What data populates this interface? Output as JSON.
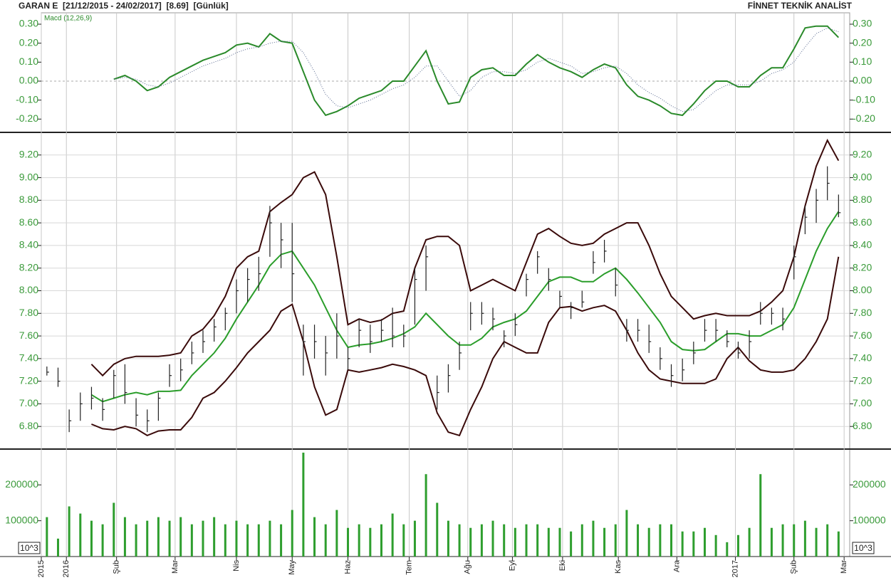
{
  "header": {
    "symbol_info": "GARAN E  [21/12/2015 - 24/02/2017]  [8.69]  [Günlük]",
    "brand": "FİNNET TEKNİK ANALİST"
  },
  "chart_data": [
    {
      "type": "line",
      "ylim": [
        -0.27,
        0.36
      ],
      "yticks": [
        {
          "value": 0.3,
          "label": "0.30"
        },
        {
          "value": 0.2,
          "label": "0.20"
        },
        {
          "value": 0.1,
          "label": "0.10"
        },
        {
          "value": 0,
          "label": "0.00"
        },
        {
          "value": -0.1,
          "label": "-0.10"
        },
        {
          "value": -0.2,
          "label": "-0.20"
        }
      ],
      "grid": false,
      "series": [
        {
          "name": "Macd (12,26,9)",
          "color": "#2a8a2a",
          "style": "solid",
          "values": [
            null,
            null,
            null,
            null,
            null,
            null,
            0.01,
            0.03,
            0.0,
            -0.05,
            -0.03,
            0.02,
            0.05,
            0.08,
            0.11,
            0.13,
            0.15,
            0.19,
            0.2,
            0.18,
            0.25,
            0.21,
            0.2,
            0.05,
            -0.1,
            -0.18,
            -0.16,
            -0.13,
            -0.09,
            -0.07,
            -0.05,
            0.0,
            0.0,
            0.08,
            0.16,
            0.0,
            -0.12,
            -0.11,
            0.02,
            0.06,
            0.07,
            0.03,
            0.03,
            0.09,
            0.14,
            0.1,
            0.07,
            0.05,
            0.02,
            0.06,
            0.09,
            0.07,
            -0.02,
            -0.08,
            -0.1,
            -0.13,
            -0.17,
            -0.18,
            -0.12,
            -0.05,
            0.0,
            0.0,
            -0.03,
            -0.03,
            0.03,
            0.07,
            0.07,
            0.17,
            0.28,
            0.29,
            0.29,
            0.23
          ]
        },
        {
          "color": "#5a6a90",
          "style": "dotted",
          "values": [
            null,
            null,
            null,
            null,
            null,
            null,
            0.01,
            0.02,
            0.01,
            -0.02,
            -0.03,
            -0.01,
            0.02,
            0.05,
            0.08,
            0.1,
            0.12,
            0.15,
            0.17,
            0.18,
            0.2,
            0.21,
            0.21,
            0.15,
            0.05,
            -0.07,
            -0.13,
            -0.14,
            -0.12,
            -0.1,
            -0.07,
            -0.04,
            -0.02,
            0.02,
            0.08,
            0.08,
            0.0,
            -0.08,
            -0.05,
            0.02,
            0.05,
            0.05,
            0.04,
            0.06,
            0.1,
            0.12,
            0.1,
            0.08,
            0.04,
            0.05,
            0.07,
            0.08,
            0.04,
            -0.02,
            -0.06,
            -0.09,
            -0.13,
            -0.16,
            -0.15,
            -0.1,
            -0.05,
            -0.02,
            -0.02,
            -0.02,
            0.0,
            0.04,
            0.06,
            0.1,
            0.18,
            0.25,
            0.28,
            0.26
          ]
        }
      ]
    },
    {
      "type": "ohlc",
      "ylim": [
        6.6,
        9.4
      ],
      "color": "#222222",
      "yticks": [
        {
          "value": 9.2,
          "label": "9.20"
        },
        {
          "value": 9,
          "label": "9.00"
        },
        {
          "value": 8.8,
          "label": "8.80"
        },
        {
          "value": 8.6,
          "label": "8.60"
        },
        {
          "value": 8.4,
          "label": "8.40"
        },
        {
          "value": 8.2,
          "label": "8.20"
        },
        {
          "value": 8,
          "label": "8.00"
        },
        {
          "value": 7.8,
          "label": "7.80"
        },
        {
          "value": 7.6,
          "label": "7.60"
        },
        {
          "value": 7.4,
          "label": "7.40"
        },
        {
          "value": 7.2,
          "label": "7.20"
        },
        {
          "value": 7,
          "label": "7.00"
        },
        {
          "value": 6.8,
          "label": "6.80"
        }
      ],
      "grid": true,
      "high": [
        7.33,
        7.32,
        6.95,
        7.1,
        7.15,
        7.05,
        7.3,
        7.35,
        7.05,
        6.95,
        7.1,
        7.35,
        7.4,
        7.55,
        7.65,
        7.75,
        7.85,
        8.1,
        8.2,
        8.3,
        8.75,
        8.6,
        8.6,
        7.7,
        7.7,
        7.6,
        7.8,
        7.5,
        7.75,
        7.7,
        7.75,
        7.85,
        7.7,
        8.2,
        8.4,
        7.25,
        7.35,
        7.55,
        7.9,
        7.9,
        7.85,
        7.65,
        7.8,
        8.15,
        8.35,
        8.2,
        8.0,
        7.9,
        8.0,
        8.35,
        8.45,
        8.2,
        7.75,
        7.75,
        7.7,
        7.5,
        7.35,
        7.4,
        7.55,
        7.75,
        7.75,
        7.65,
        7.55,
        7.65,
        7.9,
        7.85,
        7.85,
        8.4,
        8.75,
        8.9,
        9.1,
        8.85
      ],
      "low": [
        7.25,
        7.15,
        6.75,
        6.85,
        6.95,
        6.85,
        7.05,
        7.0,
        6.8,
        6.75,
        6.85,
        7.15,
        7.2,
        7.35,
        7.45,
        7.55,
        7.65,
        7.8,
        7.9,
        8.0,
        8.3,
        8.2,
        7.9,
        7.25,
        7.4,
        7.25,
        7.4,
        7.3,
        7.5,
        7.45,
        7.55,
        7.5,
        7.5,
        7.7,
        8.0,
        6.95,
        7.1,
        7.3,
        7.65,
        7.7,
        7.65,
        7.5,
        7.6,
        7.95,
        8.15,
        8.0,
        7.85,
        7.75,
        7.85,
        8.15,
        8.25,
        7.95,
        7.55,
        7.55,
        7.45,
        7.3,
        7.15,
        7.2,
        7.35,
        7.55,
        7.55,
        7.5,
        7.4,
        7.4,
        7.7,
        7.7,
        7.65,
        8.1,
        8.5,
        8.6,
        8.8,
        8.65
      ],
      "close": [
        7.28,
        7.2,
        6.85,
        7.0,
        7.05,
        6.95,
        7.25,
        7.1,
        6.9,
        6.85,
        7.05,
        7.25,
        7.3,
        7.45,
        7.55,
        7.68,
        7.8,
        8.0,
        8.1,
        8.15,
        8.6,
        8.45,
        8.15,
        7.55,
        7.55,
        7.45,
        7.6,
        7.4,
        7.65,
        7.55,
        7.65,
        7.6,
        7.6,
        8.1,
        8.3,
        7.1,
        7.25,
        7.45,
        7.8,
        7.8,
        7.75,
        7.6,
        7.7,
        8.1,
        8.3,
        8.1,
        7.95,
        7.85,
        7.9,
        8.25,
        8.35,
        8.05,
        7.65,
        7.65,
        7.55,
        7.4,
        7.25,
        7.3,
        7.45,
        7.65,
        7.65,
        7.55,
        7.45,
        7.55,
        7.8,
        7.8,
        7.75,
        8.3,
        8.65,
        8.8,
        8.95,
        8.69
      ],
      "series": [
        {
          "color": "#3a0a0a",
          "style": "solid",
          "values": [
            null,
            null,
            null,
            null,
            7.35,
            7.25,
            7.35,
            7.4,
            7.42,
            7.42,
            7.42,
            7.43,
            7.45,
            7.6,
            7.66,
            7.78,
            7.95,
            8.2,
            8.3,
            8.35,
            8.7,
            8.78,
            8.85,
            9.0,
            9.05,
            8.85,
            8.3,
            7.7,
            7.75,
            7.72,
            7.74,
            7.8,
            7.82,
            8.2,
            8.45,
            8.48,
            8.48,
            8.4,
            8.0,
            8.05,
            8.1,
            8.05,
            8.0,
            8.25,
            8.5,
            8.55,
            8.48,
            8.42,
            8.4,
            8.42,
            8.5,
            8.55,
            8.6,
            8.6,
            8.4,
            8.15,
            7.95,
            7.85,
            7.75,
            7.78,
            7.8,
            7.78,
            7.78,
            7.78,
            7.82,
            7.9,
            8.0,
            8.3,
            8.75,
            9.1,
            9.33,
            9.15
          ]
        },
        {
          "color": "#2a9d2a",
          "style": "solid",
          "values": [
            null,
            null,
            null,
            null,
            7.08,
            7.02,
            7.05,
            7.08,
            7.1,
            7.08,
            7.11,
            7.11,
            7.12,
            7.25,
            7.35,
            7.45,
            7.58,
            7.75,
            7.9,
            8.05,
            8.22,
            8.32,
            8.35,
            8.2,
            8.05,
            7.85,
            7.65,
            7.5,
            7.52,
            7.53,
            7.55,
            7.58,
            7.62,
            7.68,
            7.8,
            7.7,
            7.6,
            7.52,
            7.52,
            7.58,
            7.68,
            7.72,
            7.75,
            7.82,
            7.95,
            8.08,
            8.12,
            8.12,
            8.08,
            8.08,
            8.15,
            8.2,
            8.1,
            7.98,
            7.85,
            7.72,
            7.55,
            7.48,
            7.47,
            7.48,
            7.55,
            7.62,
            7.62,
            7.6,
            7.6,
            7.65,
            7.7,
            7.85,
            8.1,
            8.35,
            8.55,
            8.7
          ]
        },
        {
          "color": "#3a0a0a",
          "style": "solid",
          "values": [
            null,
            null,
            null,
            null,
            6.82,
            6.78,
            6.77,
            6.8,
            6.78,
            6.72,
            6.76,
            6.77,
            6.77,
            6.88,
            7.05,
            7.1,
            7.2,
            7.32,
            7.45,
            7.55,
            7.65,
            7.82,
            7.88,
            7.55,
            7.15,
            6.9,
            6.95,
            7.3,
            7.28,
            7.3,
            7.32,
            7.35,
            7.33,
            7.3,
            7.25,
            6.92,
            6.75,
            6.72,
            6.95,
            7.15,
            7.4,
            7.55,
            7.5,
            7.45,
            7.45,
            7.72,
            7.85,
            7.86,
            7.82,
            7.85,
            7.87,
            7.82,
            7.65,
            7.45,
            7.3,
            7.22,
            7.2,
            7.18,
            7.18,
            7.18,
            7.22,
            7.4,
            7.5,
            7.38,
            7.3,
            7.28,
            7.28,
            7.3,
            7.4,
            7.55,
            7.75,
            8.3
          ]
        }
      ]
    },
    {
      "type": "bar",
      "ylim": [
        0,
        300000
      ],
      "yticks": [
        200000,
        100000
      ],
      "unit_label": "10^3",
      "color": "#2e9e2e",
      "grid": false,
      "values": [
        110000,
        50000,
        140000,
        120000,
        100000,
        90000,
        150000,
        110000,
        90000,
        100000,
        110000,
        100000,
        110000,
        90000,
        100000,
        110000,
        90000,
        100000,
        90000,
        90000,
        100000,
        90000,
        130000,
        290000,
        110000,
        90000,
        130000,
        80000,
        90000,
        80000,
        90000,
        120000,
        90000,
        100000,
        230000,
        150000,
        100000,
        90000,
        80000,
        90000,
        100000,
        90000,
        80000,
        90000,
        90000,
        80000,
        80000,
        70000,
        90000,
        100000,
        80000,
        90000,
        130000,
        90000,
        80000,
        90000,
        90000,
        70000,
        70000,
        80000,
        60000,
        40000,
        60000,
        80000,
        230000,
        80000,
        90000,
        90000,
        100000,
        80000,
        90000,
        70000
      ],
      "x": [
        2,
        6,
        10,
        14,
        18,
        22,
        26,
        30,
        34,
        38,
        42,
        46,
        50,
        54,
        58,
        62,
        66,
        70,
        74,
        78,
        82,
        86,
        90,
        94,
        98,
        102,
        106,
        110,
        114,
        118,
        122,
        126,
        130,
        134,
        138,
        142,
        146,
        150,
        154,
        158,
        162,
        166,
        170,
        174,
        178,
        182,
        186,
        190,
        194,
        198,
        202,
        206,
        210,
        214,
        218,
        222,
        226,
        230,
        234,
        238,
        242,
        246,
        250,
        254,
        258,
        262,
        266,
        270,
        274,
        278,
        282,
        286
      ],
      "xlim": [
        0,
        290
      ],
      "xticks": [
        {
          "value": 0,
          "label": "2015"
        },
        {
          "value": 9,
          "label": "2016"
        },
        {
          "value": 27,
          "label": "Şub"
        },
        {
          "value": 48,
          "label": "Mar"
        },
        {
          "value": 70,
          "label": "Nis"
        },
        {
          "value": 90,
          "label": "May"
        },
        {
          "value": 110,
          "label": "Haz"
        },
        {
          "value": 132,
          "label": "Tem"
        },
        {
          "value": 153,
          "label": "Ağu"
        },
        {
          "value": 169,
          "label": "Eyl"
        },
        {
          "value": 187,
          "label": "Eki"
        },
        {
          "value": 207,
          "label": "Kas"
        },
        {
          "value": 228,
          "label": "Ara"
        },
        {
          "value": 249,
          "label": "2017"
        },
        {
          "value": 270,
          "label": "Şub"
        },
        {
          "value": 288,
          "label": "Mar"
        }
      ]
    }
  ]
}
